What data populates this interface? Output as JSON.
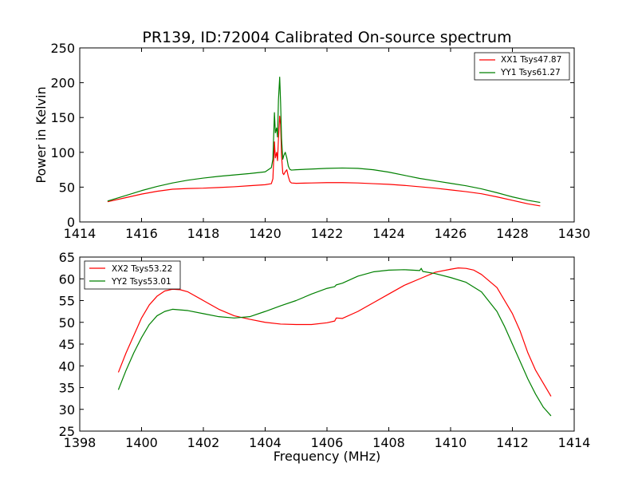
{
  "chart_data": [
    {
      "type": "line",
      "title": "PR139, ID:72004 Calibrated On-source spectrum",
      "xlabel": "",
      "ylabel": "Power in Kelvin",
      "xlim": [
        1414,
        1430
      ],
      "ylim": [
        0,
        250
      ],
      "xticks": [
        1414,
        1416,
        1418,
        1420,
        1422,
        1424,
        1426,
        1428,
        1430
      ],
      "yticks": [
        0,
        50,
        100,
        150,
        200,
        250
      ],
      "grid": false,
      "legend_position": "top-right",
      "series": [
        {
          "name": "XX1 Tsys47.87",
          "color": "#ff0000",
          "x": [
            1414.9,
            1415.5,
            1416.0,
            1416.5,
            1417.0,
            1417.5,
            1418.0,
            1418.5,
            1419.0,
            1419.5,
            1420.0,
            1420.2,
            1420.25,
            1420.3,
            1420.33,
            1420.37,
            1420.4,
            1420.43,
            1420.47,
            1420.5,
            1420.53,
            1420.57,
            1420.6,
            1420.65,
            1420.7,
            1420.75,
            1420.8,
            1420.85,
            1421.0,
            1421.5,
            1422.0,
            1422.5,
            1423.0,
            1423.5,
            1424.0,
            1424.5,
            1425.0,
            1425.5,
            1426.0,
            1426.5,
            1427.0,
            1427.5,
            1428.0,
            1428.5,
            1428.9
          ],
          "y": [
            29,
            35,
            40,
            44,
            47,
            48,
            48.5,
            49.5,
            50.5,
            52,
            53.5,
            55,
            62,
            115,
            92,
            100,
            88,
            120,
            152,
            140,
            95,
            70,
            68,
            72,
            75,
            65,
            58,
            56,
            55.5,
            56,
            56.5,
            56.5,
            56,
            55,
            54,
            52.5,
            50.5,
            48.5,
            46,
            43.5,
            40.5,
            36,
            31,
            26,
            23
          ]
        },
        {
          "name": "YY1 Tsys61.27",
          "color": "#008000",
          "x": [
            1414.9,
            1415.5,
            1416.0,
            1416.5,
            1417.0,
            1417.5,
            1418.0,
            1418.5,
            1419.0,
            1419.5,
            1420.0,
            1420.2,
            1420.25,
            1420.3,
            1420.33,
            1420.37,
            1420.4,
            1420.43,
            1420.47,
            1420.5,
            1420.53,
            1420.57,
            1420.6,
            1420.65,
            1420.7,
            1420.75,
            1420.8,
            1420.85,
            1421.0,
            1421.5,
            1422.0,
            1422.5,
            1423.0,
            1423.5,
            1424.0,
            1424.5,
            1425.0,
            1425.5,
            1426.0,
            1426.5,
            1427.0,
            1427.5,
            1428.0,
            1428.5,
            1428.9
          ],
          "y": [
            30,
            38,
            45,
            51,
            56,
            60,
            63,
            65.5,
            67.5,
            69.5,
            72,
            78,
            90,
            157,
            128,
            135,
            122,
            175,
            208,
            170,
            120,
            90,
            95,
            100,
            92,
            80,
            75.5,
            74.5,
            75,
            76,
            77,
            77.5,
            77,
            75,
            71.5,
            67,
            62.5,
            59,
            55.5,
            52,
            47.5,
            42,
            36,
            31,
            28
          ]
        }
      ]
    },
    {
      "type": "line",
      "title": "",
      "xlabel": "Frequency (MHz)",
      "ylabel": "",
      "xlim": [
        1398,
        1414
      ],
      "ylim": [
        25,
        65
      ],
      "xticks": [
        1398,
        1400,
        1402,
        1404,
        1406,
        1408,
        1410,
        1412,
        1414
      ],
      "yticks": [
        25,
        30,
        35,
        40,
        45,
        50,
        55,
        60,
        65
      ],
      "grid": false,
      "legend_position": "top-left",
      "series": [
        {
          "name": "XX2 Tsys53.22",
          "color": "#ff0000",
          "x": [
            1399.25,
            1399.5,
            1399.75,
            1400.0,
            1400.25,
            1400.5,
            1400.75,
            1401.0,
            1401.25,
            1401.5,
            1402.0,
            1402.5,
            1403.0,
            1403.5,
            1404.0,
            1404.5,
            1405.0,
            1405.5,
            1406.0,
            1406.25,
            1406.3,
            1406.5,
            1407.0,
            1407.5,
            1408.0,
            1408.5,
            1409.0,
            1409.5,
            1410.0,
            1410.25,
            1410.5,
            1410.75,
            1411.0,
            1411.5,
            1412.0,
            1412.25,
            1412.5,
            1412.75,
            1413.0,
            1413.25
          ],
          "y": [
            38.5,
            43,
            47,
            51,
            54,
            56,
            57.2,
            57.6,
            57.5,
            57,
            55,
            53,
            51.5,
            50.7,
            50,
            49.6,
            49.5,
            49.5,
            49.9,
            50.3,
            51,
            50.9,
            52.5,
            54.5,
            56.5,
            58.5,
            60,
            61.5,
            62.2,
            62.5,
            62.4,
            62,
            61,
            58,
            52,
            48,
            43,
            39,
            36,
            33
          ]
        },
        {
          "name": "YY2 Tsys53.01",
          "color": "#008000",
          "x": [
            1399.25,
            1399.5,
            1399.75,
            1400.0,
            1400.25,
            1400.5,
            1400.75,
            1401.0,
            1401.5,
            1402.0,
            1402.5,
            1403.0,
            1403.5,
            1404.0,
            1404.5,
            1405.0,
            1405.5,
            1406.0,
            1406.25,
            1406.3,
            1406.5,
            1407.0,
            1407.5,
            1408.0,
            1408.5,
            1409.0,
            1409.05,
            1409.1,
            1409.5,
            1410.0,
            1410.5,
            1411.0,
            1411.5,
            1411.75,
            1412.0,
            1412.25,
            1412.5,
            1412.75,
            1413.0,
            1413.25
          ],
          "y": [
            34.5,
            39,
            43,
            46.5,
            49.5,
            51.5,
            52.5,
            53,
            52.7,
            52,
            51.3,
            51,
            51.3,
            52.5,
            53.8,
            55,
            56.5,
            57.8,
            58.2,
            58.6,
            59,
            60.6,
            61.6,
            62,
            62.1,
            61.9,
            62.4,
            61.7,
            61.2,
            60.3,
            59.2,
            57,
            52.5,
            49,
            45,
            41,
            37,
            33.5,
            30.5,
            28.5
          ]
        }
      ]
    }
  ]
}
